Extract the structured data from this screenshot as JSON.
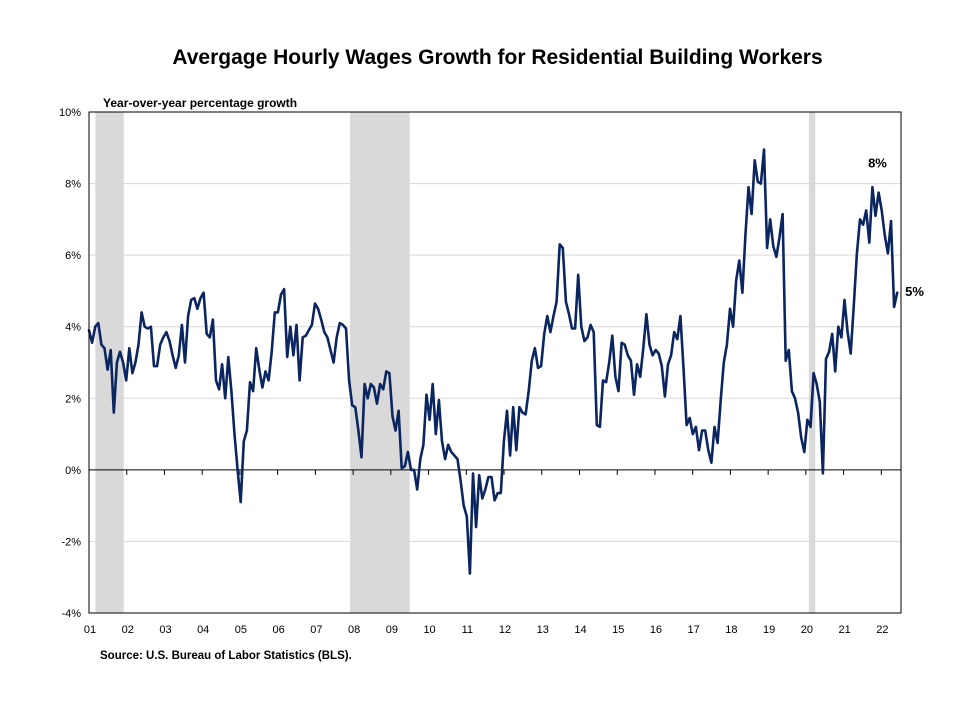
{
  "title": "Avergage Hourly Wages Growth for Residential Building Workers",
  "source": "Source: U.S. Bureau of Labor Statistics (BLS).",
  "chart_data": {
    "type": "line",
    "subtitle": "Year-over-year percentage growth",
    "ylim": [
      -4,
      10
    ],
    "yticks": [
      -4,
      -2,
      0,
      2,
      4,
      6,
      8,
      10
    ],
    "yticklabels": [
      "-4%",
      "-2%",
      "0%",
      "2%",
      "4%",
      "6%",
      "8%",
      "10%"
    ],
    "xlim": [
      2001.0,
      2022.42
    ],
    "xtick_labels": [
      "01",
      "02",
      "03",
      "04",
      "05",
      "06",
      "07",
      "08",
      "09",
      "10",
      "11",
      "12",
      "13",
      "14",
      "15",
      "16",
      "17",
      "18",
      "19",
      "20",
      "21",
      "22"
    ],
    "grid": "horizontal",
    "line_color": "#0b2561",
    "recession_color": "#d9d9d9",
    "recessions": [
      [
        2001.17,
        2001.92
      ],
      [
        2007.92,
        2009.5
      ],
      [
        2020.08,
        2020.25
      ]
    ],
    "annotations": [
      {
        "text": "8%",
        "x": 2021.5,
        "y": 8.0
      },
      {
        "text": "5%",
        "x": 2022.42,
        "y": 5.0
      }
    ],
    "series": [
      {
        "values": [
          3.9,
          3.55,
          4.0,
          4.1,
          3.5,
          3.4,
          2.8,
          3.35,
          1.6,
          3.0,
          3.3,
          3.0,
          2.5,
          3.4,
          2.7,
          3.0,
          3.5,
          4.4,
          4.0,
          3.95,
          4.0,
          2.9,
          2.9,
          3.5,
          3.7,
          3.85,
          3.6,
          3.2,
          2.85,
          3.2,
          4.05,
          3.0,
          4.3,
          4.75,
          4.8,
          4.5,
          4.8,
          4.95,
          3.8,
          3.7,
          4.2,
          2.5,
          2.25,
          2.95,
          2.0,
          3.15,
          2.2,
          1.0,
          0.0,
          -0.9,
          0.8,
          1.1,
          2.45,
          2.2,
          3.4,
          2.8,
          2.3,
          2.75,
          2.5,
          3.3,
          4.4,
          4.4,
          4.9,
          5.05,
          3.15,
          4.0,
          3.2,
          4.05,
          2.5,
          3.7,
          3.75,
          3.9,
          4.05,
          4.65,
          4.5,
          4.2,
          3.85,
          3.7,
          3.35,
          3.0,
          3.7,
          4.1,
          4.05,
          3.95,
          2.5,
          1.8,
          1.75,
          1.1,
          0.35,
          2.4,
          2.0,
          2.4,
          2.3,
          1.85,
          2.4,
          2.25,
          2.75,
          2.7,
          1.5,
          1.1,
          1.65,
          0.05,
          0.1,
          0.5,
          0.0,
          0.0,
          -0.55,
          0.3,
          0.7,
          2.1,
          1.4,
          2.4,
          1.0,
          1.95,
          0.8,
          0.3,
          0.7,
          0.5,
          0.4,
          0.3,
          -0.3,
          -1.0,
          -1.3,
          -2.9,
          -0.1,
          -1.6,
          -0.15,
          -0.8,
          -0.55,
          -0.2,
          -0.2,
          -0.85,
          -0.65,
          -0.65,
          0.8,
          1.65,
          0.4,
          1.75,
          0.55,
          1.75,
          1.6,
          1.55,
          2.2,
          3.05,
          3.4,
          2.85,
          2.9,
          3.8,
          4.3,
          3.85,
          4.3,
          4.7,
          6.3,
          6.2,
          4.7,
          4.35,
          3.95,
          3.95,
          5.45,
          4.0,
          3.6,
          3.7,
          4.05,
          3.85,
          1.25,
          1.2,
          2.5,
          2.45,
          3.0,
          3.75,
          2.6,
          2.2,
          3.55,
          3.5,
          3.2,
          3.05,
          2.1,
          2.95,
          2.6,
          3.4,
          4.35,
          3.5,
          3.2,
          3.35,
          3.25,
          2.9,
          2.05,
          2.95,
          3.2,
          3.85,
          3.65,
          4.3,
          2.85,
          1.25,
          1.45,
          1.0,
          1.2,
          0.55,
          1.1,
          1.1,
          0.55,
          0.2,
          1.2,
          0.75,
          1.95,
          3.0,
          3.5,
          4.5,
          4.0,
          5.3,
          5.85,
          4.95,
          6.55,
          7.9,
          7.15,
          8.65,
          8.05,
          8.0,
          8.95,
          6.2,
          7.0,
          6.25,
          5.95,
          6.5,
          7.15,
          3.05,
          3.35,
          2.2,
          2.0,
          1.6,
          0.9,
          0.5,
          1.4,
          1.2,
          2.7,
          2.4,
          1.9,
          -0.1,
          3.1,
          3.3,
          3.8,
          2.75,
          4.0,
          3.7,
          4.75,
          3.85,
          3.25,
          4.6,
          6.05,
          7.0,
          6.85,
          7.25,
          6.35,
          7.9,
          7.1,
          7.75,
          7.25,
          6.55,
          6.05,
          6.95,
          4.55,
          4.95
        ]
      }
    ]
  }
}
